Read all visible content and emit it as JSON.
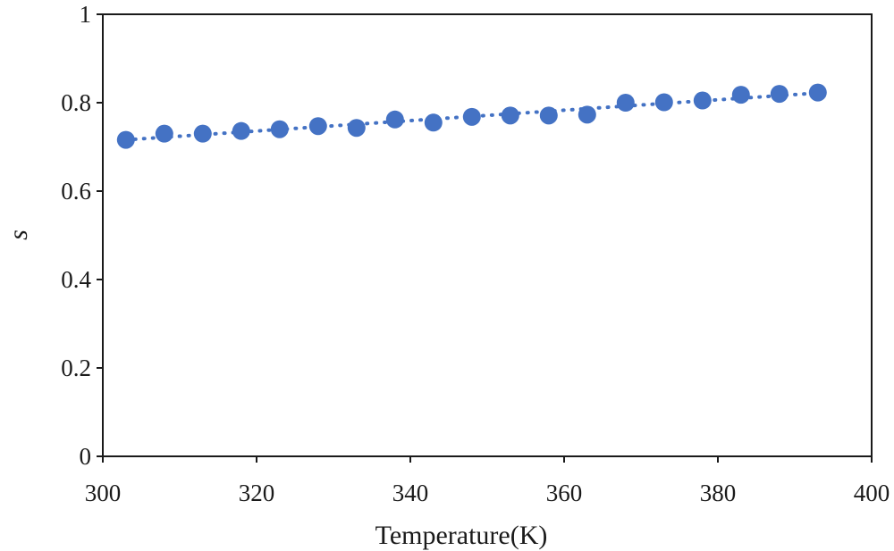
{
  "chart_data": {
    "type": "scatter",
    "title": "",
    "xlabel": "Temperature(K)",
    "ylabel": "s",
    "xlim": [
      300,
      400
    ],
    "ylim": [
      0,
      1
    ],
    "xticks": [
      300,
      320,
      340,
      360,
      380,
      400
    ],
    "yticks": [
      0,
      0.2,
      0.4,
      0.6,
      0.8,
      1
    ],
    "ytick_labels": [
      "0",
      "0.2",
      "0.4",
      "0.6",
      "0.8",
      "1"
    ],
    "grid": false,
    "trendline": "linear-dotted",
    "color": "#4472C4",
    "series": [
      {
        "name": "s",
        "x": [
          303,
          308,
          313,
          318,
          323,
          328,
          333,
          338,
          343,
          348,
          353,
          358,
          363,
          368,
          373,
          378,
          383,
          388,
          393
        ],
        "y": [
          0.716,
          0.73,
          0.73,
          0.736,
          0.74,
          0.747,
          0.743,
          0.762,
          0.755,
          0.768,
          0.771,
          0.771,
          0.773,
          0.8,
          0.801,
          0.805,
          0.818,
          0.82,
          0.823
        ]
      }
    ]
  }
}
